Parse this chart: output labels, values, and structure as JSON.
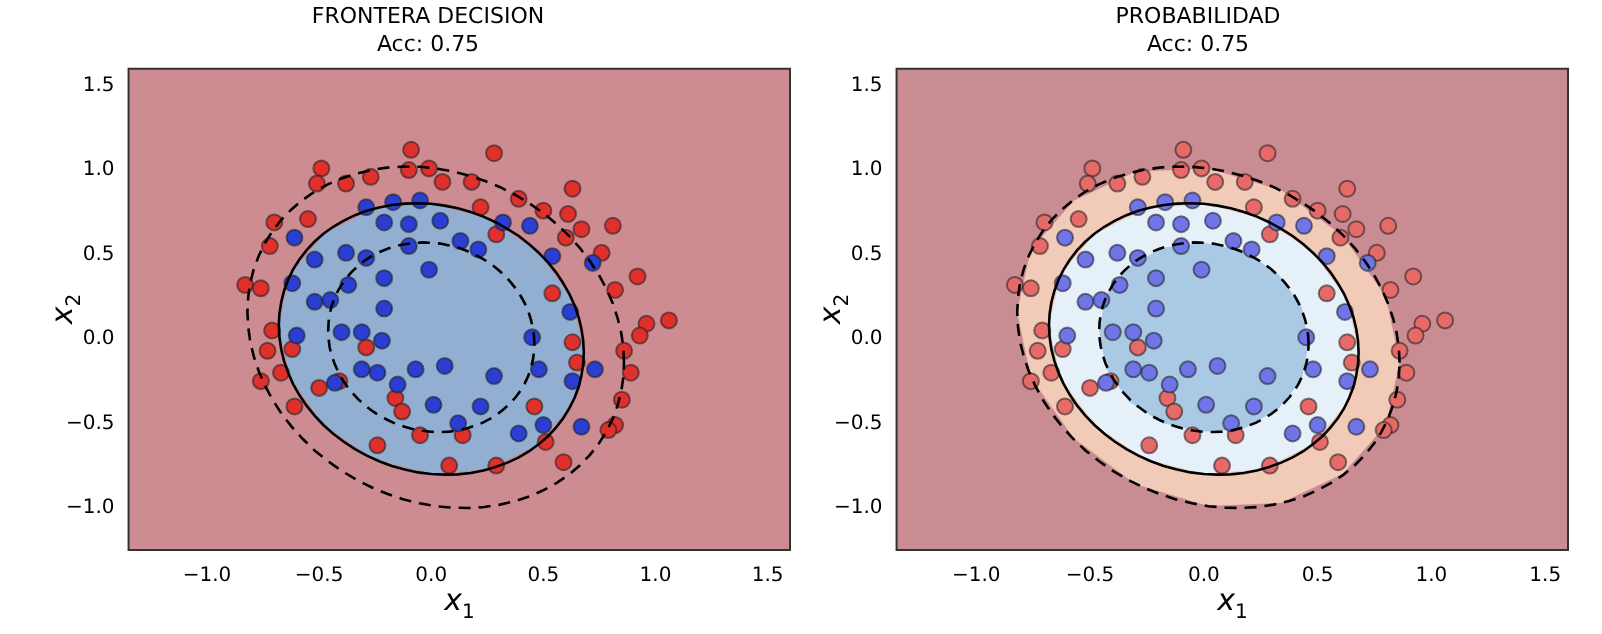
{
  "chart_data": [
    {
      "type": "scatter",
      "title": "FRONTERA DECISION",
      "subtitle": "Acc: 0.75",
      "xlabel": "x$_{1}$",
      "ylabel": "x$_{2}$",
      "xlim": [
        -1.35,
        1.6
      ],
      "ylim": [
        -1.25,
        1.6
      ],
      "xticks": [
        {
          "value": -1,
          "label": "−1.0"
        },
        {
          "value": -0.5,
          "label": "−0.5"
        },
        {
          "value": 0,
          "label": "0.0"
        },
        {
          "value": 0.5,
          "label": "0.5"
        },
        {
          "value": 1,
          "label": "1.0"
        },
        {
          "value": 1.5,
          "label": "1.5"
        }
      ],
      "yticks": [
        {
          "value": -1,
          "label": "−1.0"
        },
        {
          "value": -0.5,
          "label": "−0.5"
        },
        {
          "value": 0,
          "label": "0.0"
        },
        {
          "value": 0.5,
          "label": "0.5"
        },
        {
          "value": 1,
          "label": "1.0"
        },
        {
          "value": 1.5,
          "label": "1.5"
        }
      ],
      "bands": [
        {
          "axis": "y",
          "from": -1.25,
          "to": 1.6,
          "color": "#cc8c92"
        }
      ],
      "series": [
        {
          "type": "area",
          "color": "#92aed0",
          "x": [
            0.68,
            0.63,
            0.48,
            0.26,
            0,
            -0.26,
            -0.48,
            -0.63,
            -0.68,
            -0.63,
            -0.48,
            -0.26,
            0,
            0.26,
            0.48,
            0.63,
            0.68
          ],
          "values": [
            -0.08,
            0.23,
            0.51,
            0.71,
            0.8,
            0.77,
            0.62,
            0.38,
            0.08,
            -0.23,
            -0.51,
            -0.71,
            -0.8,
            -0.77,
            -0.62,
            -0.38,
            -0.08
          ]
        },
        {
          "type": "scatter",
          "marker": "circle",
          "color": "#e0302c",
          "x": [
            -0.09,
            0.28,
            -0.49,
            -0.51,
            -0.38,
            -0.27,
            -0.1,
            -0.01,
            0.05,
            0.18,
            0.63,
            0.39,
            0.5,
            0.61,
            0.67,
            0.81,
            0.6,
            0.76,
            0.92,
            0.82,
            1.06,
            0.96,
            0.93,
            0.86,
            0.89,
            0.85,
            0.82,
            0.79,
            0.59,
            -0.7,
            -0.72,
            -0.83,
            -0.76,
            -0.71,
            -0.73,
            -0.67,
            -0.76,
            -0.61,
            -0.55,
            0.22,
            0.29,
            -0.62,
            -0.5,
            -0.41,
            -0.29,
            -0.16,
            -0.13,
            -0.24,
            -0.05,
            0.08,
            0.14,
            0.29,
            0.46,
            0.51,
            0.63,
            0.65,
            0.54
          ],
          "values": [
            1.12,
            1.1,
            1.01,
            0.92,
            0.92,
            0.96,
            1.0,
            1.01,
            0.93,
            0.93,
            0.89,
            0.83,
            0.76,
            0.74,
            0.65,
            0.67,
            0.6,
            0.51,
            0.37,
            0.29,
            0.11,
            0.09,
            0.02,
            -0.07,
            -0.2,
            -0.36,
            -0.51,
            -0.54,
            -0.73,
            0.69,
            0.55,
            0.32,
            0.3,
            0.05,
            -0.07,
            -0.2,
            -0.25,
            -0.4,
            0.71,
            0.78,
            0.62,
            -0.06,
            -0.29,
            -0.25,
            -0.05,
            -0.35,
            -0.43,
            -0.63,
            -0.57,
            -0.75,
            -0.57,
            -0.75,
            -0.4,
            -0.61,
            -0.02,
            -0.14,
            0.27
          ]
        },
        {
          "type": "scatter",
          "marker": "circle",
          "color": "#2a3fd2",
          "x": [
            -0.61,
            -0.52,
            -0.62,
            -0.52,
            -0.38,
            -0.29,
            -0.17,
            -0.05,
            -0.21,
            -0.1,
            0.04,
            -0.1,
            0.13,
            0.21,
            0.32,
            0.44,
            0.54,
            0.72,
            0.62,
            0.45,
            0.63,
            0.73,
            0.48,
            0.67,
            0.5,
            0.39,
            0.12,
            0.22,
            0.28,
            0.06,
            -0.07,
            -0.15,
            0.01,
            -0.24,
            -0.31,
            -0.22,
            -0.31,
            -0.4,
            -0.21,
            -0.37,
            -0.21,
            -0.01,
            -0.29,
            -0.45,
            -0.6,
            -0.43
          ],
          "values": [
            0.6,
            0.47,
            0.33,
            0.22,
            0.51,
            0.78,
            0.81,
            0.82,
            0.69,
            0.68,
            0.7,
            0.55,
            0.58,
            0.53,
            0.69,
            0.67,
            0.49,
            0.45,
            0.16,
            0.01,
            -0.25,
            -0.18,
            -0.18,
            -0.52,
            -0.51,
            -0.56,
            -0.5,
            -0.4,
            -0.22,
            -0.16,
            -0.18,
            -0.27,
            -0.39,
            -0.2,
            -0.18,
            -0.01,
            0.04,
            0.04,
            0.18,
            0.32,
            0.36,
            0.41,
            0.48,
            0.23,
            0.02,
            -0.26
          ]
        }
      ]
    },
    {
      "type": "scatter",
      "title": "PROBABILIDAD",
      "subtitle": "Acc: 0.75",
      "xlabel": "x$_{1}$",
      "ylabel": "x$_{2}$",
      "xlim": [
        -1.35,
        1.6
      ],
      "ylim": [
        -1.25,
        1.6
      ],
      "xticks": [
        {
          "value": -1,
          "label": "−1.0"
        },
        {
          "value": -0.5,
          "label": "−0.5"
        },
        {
          "value": 0,
          "label": "0.0"
        },
        {
          "value": 0.5,
          "label": "0.5"
        },
        {
          "value": 1,
          "label": "1.0"
        },
        {
          "value": 1.5,
          "label": "1.5"
        }
      ],
      "yticks": [
        {
          "value": -1,
          "label": "−1.0"
        },
        {
          "value": -0.5,
          "label": "−0.5"
        },
        {
          "value": 0,
          "label": "0.0"
        },
        {
          "value": 0.5,
          "label": "0.5"
        },
        {
          "value": 1,
          "label": "1.0"
        },
        {
          "value": 1.5,
          "label": "1.5"
        }
      ],
      "bands": [
        {
          "axis": "y",
          "from": -1.25,
          "to": 1.6,
          "color": "#c98c92"
        }
      ],
      "series": [
        {
          "type": "area",
          "color": "#f2cbb8",
          "x": [
            0.86,
            0.8,
            0.61,
            0.34,
            0.02,
            -0.3,
            -0.57,
            -0.76,
            -0.82,
            -0.76,
            -0.57,
            -0.3,
            0.02,
            0.34,
            0.61,
            0.8,
            0.86
          ],
          "values": [
            -0.14,
            0.25,
            0.61,
            0.88,
            1.01,
            0.99,
            0.82,
            0.53,
            0.16,
            -0.23,
            -0.59,
            -0.86,
            -0.99,
            -0.97,
            -0.8,
            -0.51,
            -0.14
          ]
        },
        {
          "type": "area",
          "color": "#e6f0f8",
          "x": [
            0.68,
            0.63,
            0.48,
            0.26,
            0,
            -0.26,
            -0.48,
            -0.63,
            -0.68,
            -0.63,
            -0.48,
            -0.26,
            0,
            0.26,
            0.48,
            0.63,
            0.68
          ],
          "values": [
            -0.08,
            0.23,
            0.51,
            0.71,
            0.8,
            0.77,
            0.62,
            0.38,
            0.08,
            -0.23,
            -0.51,
            -0.71,
            -0.8,
            -0.77,
            -0.62,
            -0.38,
            -0.08
          ]
        },
        {
          "type": "area",
          "color": "#a9c9e4",
          "x": [
            0.46,
            0.43,
            0.33,
            0.18,
            0,
            -0.18,
            -0.33,
            -0.43,
            -0.46,
            -0.43,
            -0.33,
            -0.18,
            0,
            0.18,
            0.33,
            0.43,
            0.46
          ],
          "values": [
            -0.03,
            0.19,
            0.38,
            0.52,
            0.57,
            0.54,
            0.43,
            0.26,
            0.05,
            -0.17,
            -0.37,
            -0.5,
            -0.55,
            -0.53,
            -0.41,
            -0.24,
            -0.03
          ]
        },
        {
          "type": "scatter",
          "marker": "circle",
          "color": "#e66a68",
          "x": [
            -0.09,
            0.28,
            -0.49,
            -0.51,
            -0.38,
            -0.27,
            -0.1,
            -0.01,
            0.05,
            0.18,
            0.63,
            0.39,
            0.5,
            0.61,
            0.67,
            0.81,
            0.6,
            0.76,
            0.92,
            0.82,
            1.06,
            0.96,
            0.93,
            0.86,
            0.89,
            0.85,
            0.82,
            0.79,
            0.59,
            -0.7,
            -0.72,
            -0.83,
            -0.76,
            -0.71,
            -0.73,
            -0.67,
            -0.76,
            -0.61,
            -0.55,
            0.22,
            0.29,
            -0.62,
            -0.5,
            -0.41,
            -0.29,
            -0.16,
            -0.13,
            -0.24,
            -0.05,
            0.08,
            0.14,
            0.29,
            0.46,
            0.51,
            0.63,
            0.65,
            0.54
          ],
          "values": [
            1.12,
            1.1,
            1.01,
            0.92,
            0.92,
            0.96,
            1.0,
            1.01,
            0.93,
            0.93,
            0.89,
            0.83,
            0.76,
            0.74,
            0.65,
            0.67,
            0.6,
            0.51,
            0.37,
            0.29,
            0.11,
            0.09,
            0.02,
            -0.07,
            -0.2,
            -0.36,
            -0.51,
            -0.54,
            -0.73,
            0.69,
            0.55,
            0.32,
            0.3,
            0.05,
            -0.07,
            -0.2,
            -0.25,
            -0.4,
            0.71,
            0.78,
            0.62,
            -0.06,
            -0.29,
            -0.25,
            -0.05,
            -0.35,
            -0.43,
            -0.63,
            -0.57,
            -0.75,
            -0.57,
            -0.75,
            -0.4,
            -0.61,
            -0.02,
            -0.14,
            0.27
          ]
        },
        {
          "type": "scatter",
          "marker": "circle",
          "color": "#6f74e6",
          "x": [
            -0.61,
            -0.52,
            -0.62,
            -0.52,
            -0.38,
            -0.29,
            -0.17,
            -0.05,
            -0.21,
            -0.1,
            0.04,
            -0.1,
            0.13,
            0.21,
            0.32,
            0.44,
            0.54,
            0.72,
            0.62,
            0.45,
            0.63,
            0.73,
            0.48,
            0.67,
            0.5,
            0.39,
            0.12,
            0.22,
            0.28,
            0.06,
            -0.07,
            -0.15,
            0.01,
            -0.24,
            -0.31,
            -0.22,
            -0.31,
            -0.4,
            -0.21,
            -0.37,
            -0.21,
            -0.01,
            -0.29,
            -0.45,
            -0.6,
            -0.43
          ],
          "values": [
            0.6,
            0.47,
            0.33,
            0.22,
            0.51,
            0.78,
            0.81,
            0.82,
            0.69,
            0.68,
            0.7,
            0.55,
            0.58,
            0.53,
            0.69,
            0.67,
            0.49,
            0.45,
            0.16,
            0.01,
            -0.25,
            -0.18,
            -0.18,
            -0.52,
            -0.51,
            -0.56,
            -0.5,
            -0.4,
            -0.22,
            -0.16,
            -0.18,
            -0.27,
            -0.39,
            -0.2,
            -0.18,
            -0.01,
            0.04,
            0.04,
            0.18,
            0.32,
            0.36,
            0.41,
            0.48,
            0.23,
            0.02,
            -0.26
          ]
        }
      ]
    }
  ]
}
